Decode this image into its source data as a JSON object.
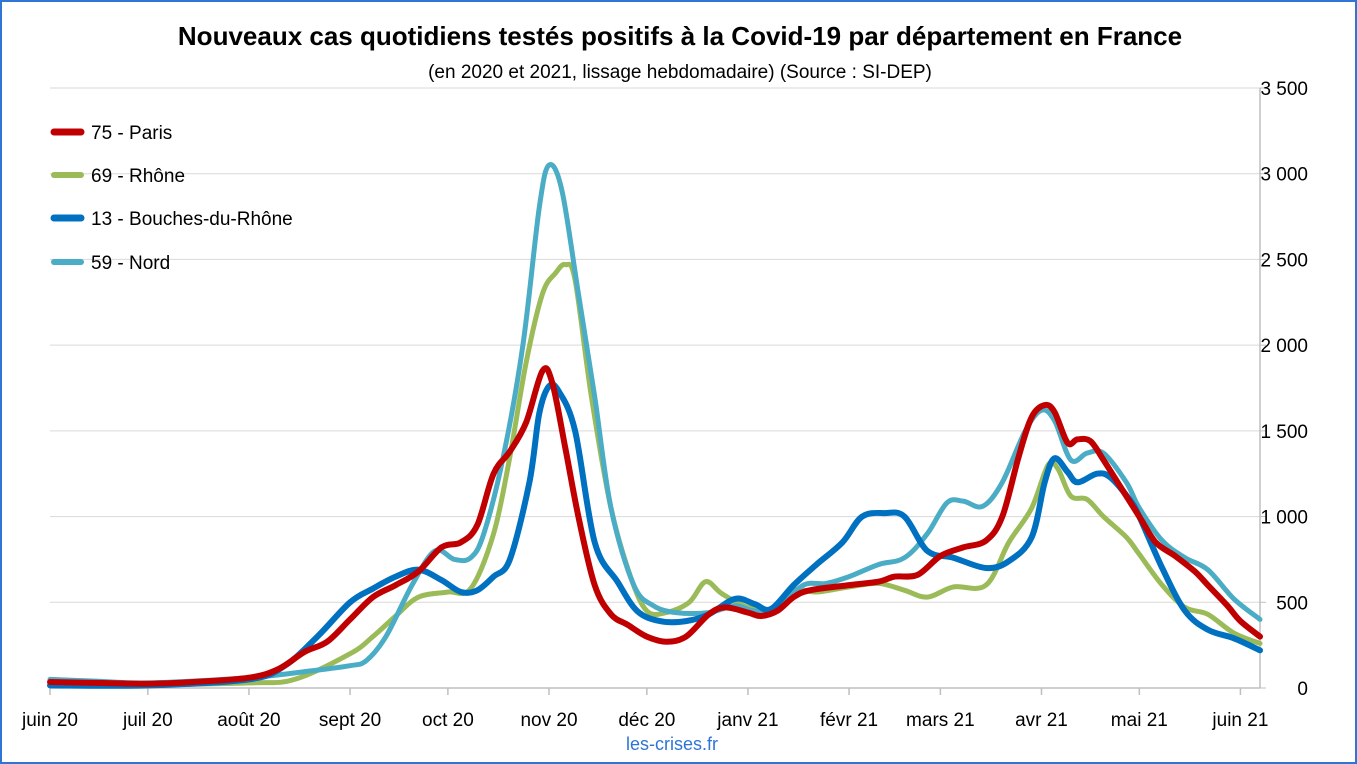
{
  "chart_data": {
    "type": "line",
    "title": "Nouveaux cas quotidiens testés positifs à la Covid-19 par département en France",
    "subtitle": "(en 2020 et 2021, lissage hebdomadaire) (Source : SI-DEP)",
    "source_note": "les-crises.fr",
    "xlabel": "",
    "ylabel": "",
    "ylim": [
      0,
      3500
    ],
    "y_ticks": [
      0,
      500,
      1000,
      1500,
      2000,
      2500,
      3000,
      3500
    ],
    "y_tick_labels": [
      "0",
      "500",
      "1 000",
      "1 500",
      "2 000",
      "2 500",
      "3 000",
      "3 500"
    ],
    "y_axis_position": "right",
    "grid": true,
    "legend_position": "top-left",
    "x_range": [
      "2020-06-01",
      "2021-06-07"
    ],
    "x_ticks": [
      {
        "date": "2020-06-01",
        "label": "juin 20"
      },
      {
        "date": "2020-07-01",
        "label": "juil 20"
      },
      {
        "date": "2020-08-01",
        "label": "août 20"
      },
      {
        "date": "2020-09-01",
        "label": "sept 20"
      },
      {
        "date": "2020-10-01",
        "label": "oct 20"
      },
      {
        "date": "2020-11-01",
        "label": "nov 20"
      },
      {
        "date": "2020-12-01",
        "label": "déc 20"
      },
      {
        "date": "2021-01-01",
        "label": "janv 21"
      },
      {
        "date": "2021-02-01",
        "label": "févr 21"
      },
      {
        "date": "2021-03-01",
        "label": "mars 21"
      },
      {
        "date": "2021-04-01",
        "label": "avr 21"
      },
      {
        "date": "2021-05-01",
        "label": "mai 21"
      },
      {
        "date": "2021-06-01",
        "label": "juin 21"
      }
    ],
    "series": [
      {
        "name": "75 - Paris",
        "color": "#c00000",
        "width": 6,
        "points": [
          [
            "2020-06-01",
            35
          ],
          [
            "2020-06-15",
            30
          ],
          [
            "2020-07-01",
            25
          ],
          [
            "2020-07-15",
            35
          ],
          [
            "2020-08-01",
            60
          ],
          [
            "2020-08-10",
            110
          ],
          [
            "2020-08-18",
            210
          ],
          [
            "2020-08-25",
            270
          ],
          [
            "2020-09-01",
            400
          ],
          [
            "2020-09-08",
            530
          ],
          [
            "2020-09-15",
            600
          ],
          [
            "2020-09-22",
            680
          ],
          [
            "2020-09-29",
            820
          ],
          [
            "2020-10-05",
            850
          ],
          [
            "2020-10-10",
            950
          ],
          [
            "2020-10-15",
            1250
          ],
          [
            "2020-10-20",
            1380
          ],
          [
            "2020-10-25",
            1550
          ],
          [
            "2020-10-30",
            1850
          ],
          [
            "2020-11-02",
            1780
          ],
          [
            "2020-11-06",
            1400
          ],
          [
            "2020-11-10",
            1000
          ],
          [
            "2020-11-15",
            600
          ],
          [
            "2020-11-20",
            430
          ],
          [
            "2020-11-25",
            370
          ],
          [
            "2020-12-01",
            300
          ],
          [
            "2020-12-07",
            270
          ],
          [
            "2020-12-13",
            300
          ],
          [
            "2020-12-20",
            430
          ],
          [
            "2020-12-25",
            470
          ],
          [
            "2021-01-01",
            440
          ],
          [
            "2021-01-05",
            420
          ],
          [
            "2021-01-10",
            450
          ],
          [
            "2021-01-15",
            530
          ],
          [
            "2021-01-20",
            570
          ],
          [
            "2021-02-01",
            600
          ],
          [
            "2021-02-10",
            620
          ],
          [
            "2021-02-15",
            650
          ],
          [
            "2021-02-22",
            660
          ],
          [
            "2021-03-01",
            770
          ],
          [
            "2021-03-08",
            820
          ],
          [
            "2021-03-15",
            860
          ],
          [
            "2021-03-20",
            1000
          ],
          [
            "2021-03-25",
            1350
          ],
          [
            "2021-03-29",
            1580
          ],
          [
            "2021-04-02",
            1650
          ],
          [
            "2021-04-05",
            1610
          ],
          [
            "2021-04-09",
            1430
          ],
          [
            "2021-04-12",
            1450
          ],
          [
            "2021-04-16",
            1440
          ],
          [
            "2021-04-20",
            1330
          ],
          [
            "2021-04-26",
            1150
          ],
          [
            "2021-05-01",
            1000
          ],
          [
            "2021-05-06",
            850
          ],
          [
            "2021-05-12",
            770
          ],
          [
            "2021-05-18",
            680
          ],
          [
            "2021-05-22",
            600
          ],
          [
            "2021-05-28",
            480
          ],
          [
            "2021-06-01",
            390
          ],
          [
            "2021-06-07",
            300
          ]
        ]
      },
      {
        "name": "69 - Rhône",
        "color": "#9bbb59",
        "width": 5,
        "points": [
          [
            "2020-06-01",
            25
          ],
          [
            "2020-07-01",
            20
          ],
          [
            "2020-08-01",
            30
          ],
          [
            "2020-08-15",
            50
          ],
          [
            "2020-09-01",
            200
          ],
          [
            "2020-09-08",
            300
          ],
          [
            "2020-09-15",
            420
          ],
          [
            "2020-09-22",
            530
          ],
          [
            "2020-10-01",
            560
          ],
          [
            "2020-10-08",
            580
          ],
          [
            "2020-10-15",
            900
          ],
          [
            "2020-10-20",
            1350
          ],
          [
            "2020-10-25",
            1900
          ],
          [
            "2020-10-30",
            2300
          ],
          [
            "2020-11-03",
            2420
          ],
          [
            "2020-11-06",
            2470
          ],
          [
            "2020-11-09",
            2380
          ],
          [
            "2020-11-14",
            1700
          ],
          [
            "2020-11-20",
            1050
          ],
          [
            "2020-11-26",
            650
          ],
          [
            "2020-12-01",
            450
          ],
          [
            "2020-12-07",
            440
          ],
          [
            "2020-12-14",
            500
          ],
          [
            "2020-12-19",
            620
          ],
          [
            "2020-12-24",
            550
          ],
          [
            "2021-01-01",
            470
          ],
          [
            "2021-01-08",
            460
          ],
          [
            "2021-01-15",
            570
          ],
          [
            "2021-01-22",
            560
          ],
          [
            "2021-02-01",
            590
          ],
          [
            "2021-02-10",
            610
          ],
          [
            "2021-02-18",
            570
          ],
          [
            "2021-02-25",
            530
          ],
          [
            "2021-03-05",
            590
          ],
          [
            "2021-03-15",
            600
          ],
          [
            "2021-03-22",
            850
          ],
          [
            "2021-03-29",
            1050
          ],
          [
            "2021-04-03",
            1300
          ],
          [
            "2021-04-06",
            1280
          ],
          [
            "2021-04-10",
            1120
          ],
          [
            "2021-04-15",
            1100
          ],
          [
            "2021-04-20",
            1000
          ],
          [
            "2021-04-27",
            880
          ],
          [
            "2021-05-01",
            780
          ],
          [
            "2021-05-08",
            600
          ],
          [
            "2021-05-15",
            470
          ],
          [
            "2021-05-22",
            430
          ],
          [
            "2021-05-30",
            320
          ],
          [
            "2021-06-07",
            260
          ]
        ]
      },
      {
        "name": "13 - Bouches-du-Rhône",
        "color": "#0070c0",
        "width": 6,
        "points": [
          [
            "2020-06-01",
            15
          ],
          [
            "2020-07-01",
            15
          ],
          [
            "2020-08-01",
            50
          ],
          [
            "2020-08-12",
            130
          ],
          [
            "2020-08-22",
            300
          ],
          [
            "2020-09-01",
            500
          ],
          [
            "2020-09-08",
            580
          ],
          [
            "2020-09-15",
            650
          ],
          [
            "2020-09-22",
            690
          ],
          [
            "2020-09-29",
            630
          ],
          [
            "2020-10-05",
            560
          ],
          [
            "2020-10-10",
            570
          ],
          [
            "2020-10-15",
            650
          ],
          [
            "2020-10-20",
            750
          ],
          [
            "2020-10-26",
            1200
          ],
          [
            "2020-10-29",
            1600
          ],
          [
            "2020-11-01",
            1760
          ],
          [
            "2020-11-04",
            1730
          ],
          [
            "2020-11-09",
            1500
          ],
          [
            "2020-11-15",
            850
          ],
          [
            "2020-11-22",
            620
          ],
          [
            "2020-11-28",
            450
          ],
          [
            "2020-12-05",
            390
          ],
          [
            "2020-12-13",
            390
          ],
          [
            "2020-12-20",
            430
          ],
          [
            "2020-12-28",
            520
          ],
          [
            "2021-01-03",
            490
          ],
          [
            "2021-01-08",
            460
          ],
          [
            "2021-01-15",
            600
          ],
          [
            "2021-01-22",
            720
          ],
          [
            "2021-01-30",
            850
          ],
          [
            "2021-02-05",
            1000
          ],
          [
            "2021-02-12",
            1020
          ],
          [
            "2021-02-18",
            1000
          ],
          [
            "2021-02-25",
            800
          ],
          [
            "2021-03-05",
            760
          ],
          [
            "2021-03-15",
            700
          ],
          [
            "2021-03-22",
            740
          ],
          [
            "2021-03-29",
            880
          ],
          [
            "2021-04-02",
            1200
          ],
          [
            "2021-04-05",
            1340
          ],
          [
            "2021-04-09",
            1260
          ],
          [
            "2021-04-12",
            1200
          ],
          [
            "2021-04-18",
            1250
          ],
          [
            "2021-04-22",
            1230
          ],
          [
            "2021-04-28",
            1100
          ],
          [
            "2021-05-01",
            1000
          ],
          [
            "2021-05-08",
            700
          ],
          [
            "2021-05-15",
            450
          ],
          [
            "2021-05-22",
            340
          ],
          [
            "2021-05-30",
            290
          ],
          [
            "2021-06-07",
            220
          ]
        ]
      },
      {
        "name": "59 - Nord",
        "color": "#4bacc6",
        "width": 5,
        "points": [
          [
            "2020-06-01",
            50
          ],
          [
            "2020-06-15",
            40
          ],
          [
            "2020-07-01",
            30
          ],
          [
            "2020-08-01",
            60
          ],
          [
            "2020-08-20",
            100
          ],
          [
            "2020-09-01",
            130
          ],
          [
            "2020-09-06",
            160
          ],
          [
            "2020-09-12",
            300
          ],
          [
            "2020-09-20",
            600
          ],
          [
            "2020-09-27",
            800
          ],
          [
            "2020-10-03",
            750
          ],
          [
            "2020-10-08",
            760
          ],
          [
            "2020-10-12",
            900
          ],
          [
            "2020-10-18",
            1350
          ],
          [
            "2020-10-24",
            2000
          ],
          [
            "2020-10-29",
            2800
          ],
          [
            "2020-11-01",
            3050
          ],
          [
            "2020-11-05",
            2900
          ],
          [
            "2020-11-10",
            2300
          ],
          [
            "2020-11-15",
            1700
          ],
          [
            "2020-11-20",
            1050
          ],
          [
            "2020-11-27",
            600
          ],
          [
            "2020-12-03",
            480
          ],
          [
            "2020-12-10",
            440
          ],
          [
            "2020-12-20",
            440
          ],
          [
            "2020-12-28",
            480
          ],
          [
            "2021-01-03",
            450
          ],
          [
            "2021-01-10",
            470
          ],
          [
            "2021-01-18",
            600
          ],
          [
            "2021-01-25",
            610
          ],
          [
            "2021-02-01",
            650
          ],
          [
            "2021-02-10",
            720
          ],
          [
            "2021-02-18",
            760
          ],
          [
            "2021-02-25",
            900
          ],
          [
            "2021-03-03",
            1080
          ],
          [
            "2021-03-08",
            1090
          ],
          [
            "2021-03-14",
            1060
          ],
          [
            "2021-03-20",
            1200
          ],
          [
            "2021-03-27",
            1500
          ],
          [
            "2021-04-01",
            1620
          ],
          [
            "2021-04-05",
            1560
          ],
          [
            "2021-04-10",
            1330
          ],
          [
            "2021-04-15",
            1370
          ],
          [
            "2021-04-20",
            1370
          ],
          [
            "2021-04-27",
            1200
          ],
          [
            "2021-05-01",
            1050
          ],
          [
            "2021-05-08",
            860
          ],
          [
            "2021-05-15",
            760
          ],
          [
            "2021-05-22",
            690
          ],
          [
            "2021-05-30",
            520
          ],
          [
            "2021-06-07",
            400
          ]
        ]
      }
    ]
  }
}
